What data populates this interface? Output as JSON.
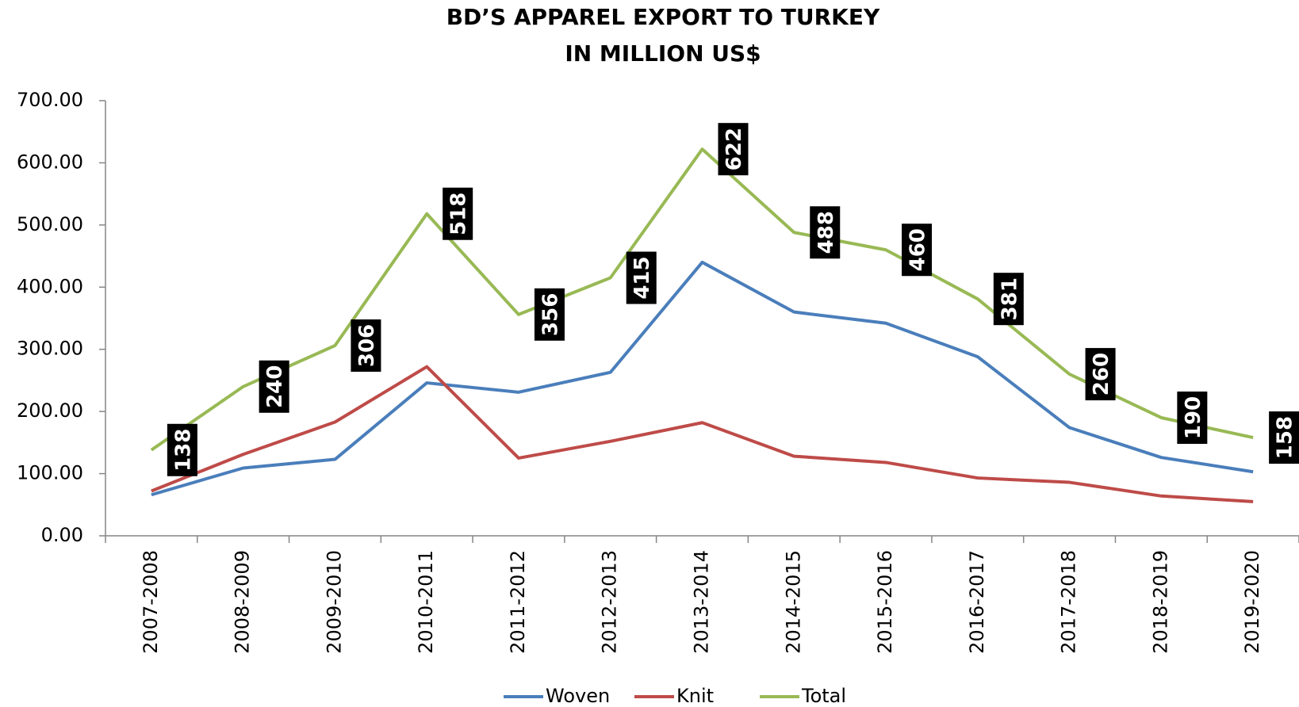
{
  "chart_data": {
    "type": "line",
    "title": "BD’S APPAREL EXPORT TO TURKEY",
    "subtitle": "IN MILLION US$",
    "categories": [
      "2007-2008",
      "2008-2009",
      "2009-2010",
      "2010-2011",
      "2011-2012",
      "2012-2013",
      "2013-2014",
      "2014-2015",
      "2015-2016",
      "2016-2017",
      "2017-2018",
      "2018-2019",
      "2019-2020"
    ],
    "series": [
      {
        "name": "Woven",
        "color": "#4a7ebb",
        "values": [
          66,
          109,
          123,
          246,
          231,
          263,
          440,
          360,
          342,
          288,
          174,
          126,
          103
        ]
      },
      {
        "name": "Knit",
        "color": "#be4b48",
        "values": [
          72,
          131,
          183,
          272,
          125,
          152,
          182,
          128,
          118,
          93,
          86,
          64,
          55
        ]
      },
      {
        "name": "Total",
        "color": "#98b954",
        "values": [
          138,
          240,
          306,
          518,
          356,
          415,
          622,
          488,
          460,
          381,
          260,
          190,
          158
        ],
        "data_labels": true
      }
    ],
    "ylim": [
      0,
      700
    ],
    "yticks": [
      {
        "value": 0,
        "label": "0.00"
      },
      {
        "value": 100,
        "label": "100.00"
      },
      {
        "value": 200,
        "label": "200.00"
      },
      {
        "value": 300,
        "label": "300.00"
      },
      {
        "value": 400,
        "label": "400.00"
      },
      {
        "value": 500,
        "label": "500.00"
      },
      {
        "value": 600,
        "label": "600.00"
      },
      {
        "value": 700,
        "label": "700.00"
      }
    ],
    "grid": false,
    "legend": "bottom"
  }
}
